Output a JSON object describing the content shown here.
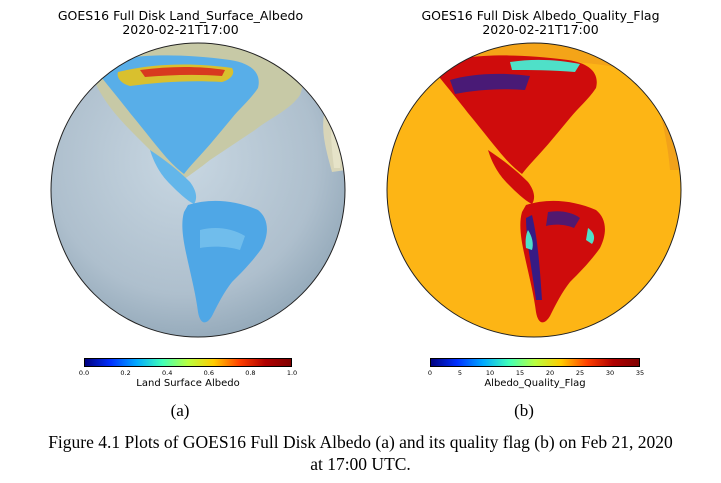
{
  "figure": {
    "panel_a": {
      "title_line1": "GOES16 Full Disk Land_Surface_Albedo",
      "title_line2": "2020-02-21T17:00",
      "colorbar_label": "Land  Surface  Albedo",
      "colorbar_ticks": [
        "0.0",
        "0.2",
        "0.4",
        "0.6",
        "0.8",
        "1.0"
      ],
      "sublabel": "(a)"
    },
    "panel_b": {
      "title_line1": "GOES16 Full Disk Albedo_Quality_Flag",
      "title_line2": "2020-02-21T17:00",
      "colorbar_label": "Albedo_Quality_Flag",
      "colorbar_ticks": [
        "0",
        "5",
        "10",
        "15",
        "20",
        "25",
        "30",
        "35"
      ],
      "sublabel": "(b)"
    },
    "caption_line1": "Figure 4.1 Plots of GOES16 Full Disk Albedo (a) and its quality flag (b) on Feb 21, 2020",
    "caption_line2": "at 17:00 UTC.",
    "colors": {
      "ocean": "#b7c9d6",
      "ocean_dark": "#8fa9bd",
      "land_relief": "#c9ccb0",
      "albedo_land": "#4aa3e8",
      "flag_background": "#fdb515",
      "flag_land": "#d40a0a",
      "flag_dark": "#1a1a9e",
      "flag_cyan": "#5fe0c0"
    }
  }
}
